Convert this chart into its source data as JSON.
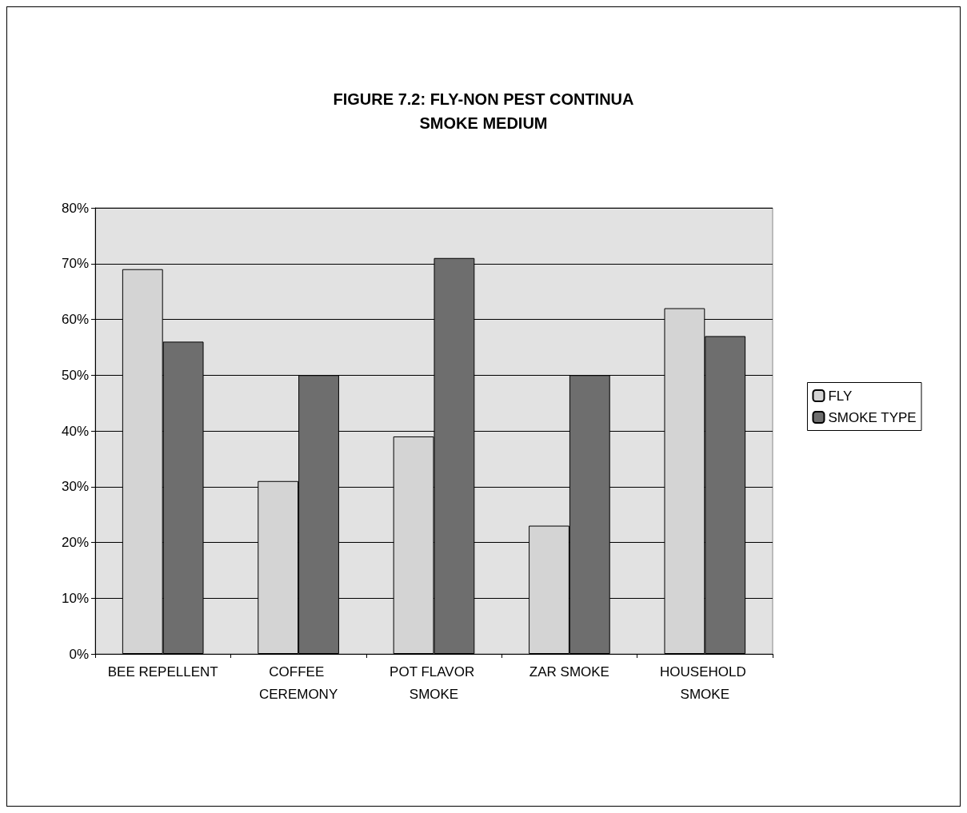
{
  "chart_data": {
    "type": "bar",
    "title": "FIGURE 7.2: FLY-NON PEST CONTINUA\nSMOKE MEDIUM",
    "categories": [
      "BEE REPELLENT",
      "COFFEE CEREMONY",
      "POT FLAVOR SMOKE",
      "ZAR SMOKE",
      "HOUSEHOLD SMOKE"
    ],
    "series": [
      {
        "name": "FLY",
        "color": "#d4d4d4",
        "values": [
          69,
          31,
          39,
          23,
          62
        ]
      },
      {
        "name": "SMOKE TYPE",
        "color": "#6e6e6e",
        "values": [
          56,
          50,
          71,
          50,
          57
        ]
      }
    ],
    "ylim": [
      0,
      80
    ],
    "yticks": [
      {
        "value": 0,
        "label": "0%"
      },
      {
        "value": 10,
        "label": "10%"
      },
      {
        "value": 20,
        "label": "20%"
      },
      {
        "value": 30,
        "label": "30%"
      },
      {
        "value": 40,
        "label": "40%"
      },
      {
        "value": 50,
        "label": "50%"
      },
      {
        "value": 60,
        "label": "60%"
      },
      {
        "value": 70,
        "label": "70%"
      },
      {
        "value": 80,
        "label": "80%"
      }
    ],
    "grid": "y",
    "legend": "right"
  }
}
